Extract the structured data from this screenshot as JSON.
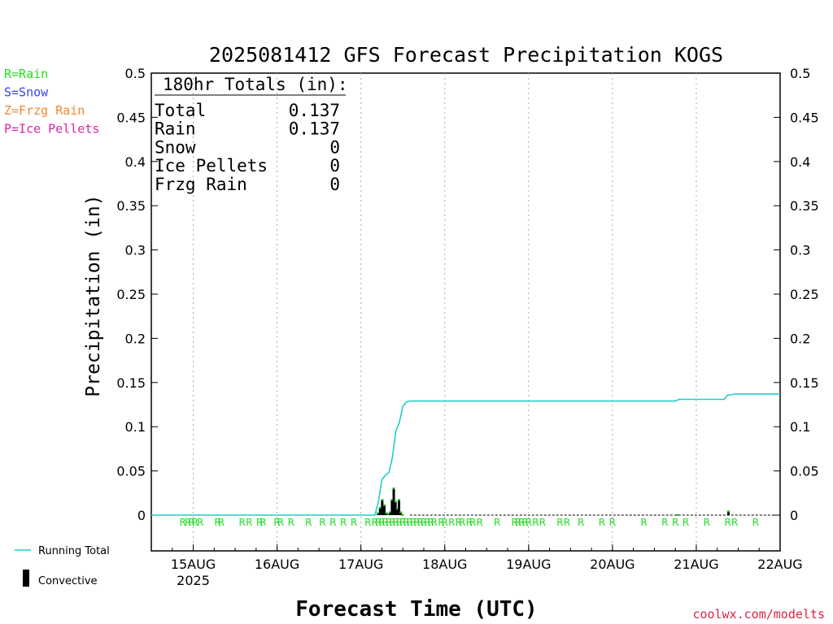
{
  "chart_data": {
    "type": "bar",
    "title": "2025081412 GFS Forecast Precipitation KOGS",
    "xlabel": "Forecast Time (UTC)",
    "ylabel": "Precipitation (in)",
    "ylim": [
      0,
      0.5
    ],
    "yticks": [
      "0",
      "0.05",
      "0.1",
      "0.15",
      "0.2",
      "0.25",
      "0.3",
      "0.35",
      "0.4",
      "0.45",
      "0.5"
    ],
    "xlim_hours": [
      0,
      180
    ],
    "xticks": [
      {
        "label": "15AUG",
        "hour": 12,
        "sub": "2025"
      },
      {
        "label": "16AUG",
        "hour": 36,
        "sub": ""
      },
      {
        "label": "17AUG",
        "hour": 60,
        "sub": ""
      },
      {
        "label": "18AUG",
        "hour": 84,
        "sub": ""
      },
      {
        "label": "19AUG",
        "hour": 108,
        "sub": ""
      },
      {
        "label": "20AUG",
        "hour": 132,
        "sub": ""
      },
      {
        "label": "21AUG",
        "hour": 156,
        "sub": ""
      },
      {
        "label": "22AUG",
        "hour": 180,
        "sub": ""
      }
    ],
    "precip_type_legend": [
      {
        "text": "R=Rain",
        "color": "#22dd22"
      },
      {
        "text": "S=Snow",
        "color": "#3344ee"
      },
      {
        "text": "Z=Frzg Rain",
        "color": "#ee8833"
      },
      {
        "text": "P=Ice Pellets",
        "color": "#dd22aa"
      }
    ],
    "totals": {
      "header": "180hr Totals (in):",
      "rows": [
        {
          "label": "Total",
          "value": "0.137"
        },
        {
          "label": "Rain",
          "value": "0.137"
        },
        {
          "label": "Snow",
          "value": "0"
        },
        {
          "label": "Ice Pellets",
          "value": "0"
        },
        {
          "label": "Frzg Rain",
          "value": "0"
        }
      ]
    },
    "series": [
      {
        "name": "Running Total",
        "color": "#22cccc",
        "type": "line",
        "points": [
          [
            0,
            0
          ],
          [
            64,
            0
          ],
          [
            65,
            0.015
          ],
          [
            66,
            0.04
          ],
          [
            67,
            0.045
          ],
          [
            68,
            0.048
          ],
          [
            69,
            0.065
          ],
          [
            70,
            0.095
          ],
          [
            71,
            0.105
          ],
          [
            72,
            0.123
          ],
          [
            73,
            0.128
          ],
          [
            74,
            0.129
          ],
          [
            150,
            0.129
          ],
          [
            151,
            0.131
          ],
          [
            164,
            0.131
          ],
          [
            165,
            0.136
          ],
          [
            166,
            0.136
          ],
          [
            167,
            0.137
          ],
          [
            180,
            0.137
          ]
        ]
      },
      {
        "name": "Convective",
        "color": "#000000",
        "type": "bar",
        "points": [
          [
            64.9,
            0.003
          ],
          [
            65.5,
            0.009
          ],
          [
            66.1,
            0.018
          ],
          [
            66.7,
            0.012
          ],
          [
            67.3,
            0.003
          ],
          [
            67.9,
            0.002
          ],
          [
            68.4,
            0.004
          ],
          [
            68.9,
            0.018
          ],
          [
            69.4,
            0.031
          ],
          [
            69.9,
            0.016
          ],
          [
            70.4,
            0.008
          ],
          [
            70.9,
            0.018
          ],
          [
            71.4,
            0.004
          ],
          [
            71.9,
            0.001
          ],
          [
            150.5,
            0.001
          ],
          [
            165.2,
            0.005
          ]
        ]
      }
    ],
    "rain_marker": "R",
    "rain_marker_hours": [
      9,
      10.5,
      11.5,
      12.5,
      14,
      19,
      20,
      26,
      28,
      31,
      32,
      36,
      37,
      40,
      45,
      49,
      52,
      55,
      58,
      62,
      64,
      65,
      66,
      67,
      68,
      69,
      70,
      71,
      72,
      73,
      74,
      75,
      76,
      77,
      78,
      79,
      80,
      81,
      83,
      84,
      86,
      88,
      89,
      91,
      92,
      94,
      99,
      104,
      105,
      106,
      107,
      108,
      110,
      112,
      117,
      119,
      123,
      129,
      132,
      141,
      147,
      150,
      153,
      159,
      165,
      167,
      173
    ],
    "legend": [
      {
        "label": "Running Total",
        "color": "#22cccc"
      },
      {
        "label": "Convective",
        "color": "#000000"
      }
    ],
    "credit": "coolwx.com/modelts",
    "grid": "vertical dotted at day boundaries",
    "legend_placement": "bottom-left"
  }
}
